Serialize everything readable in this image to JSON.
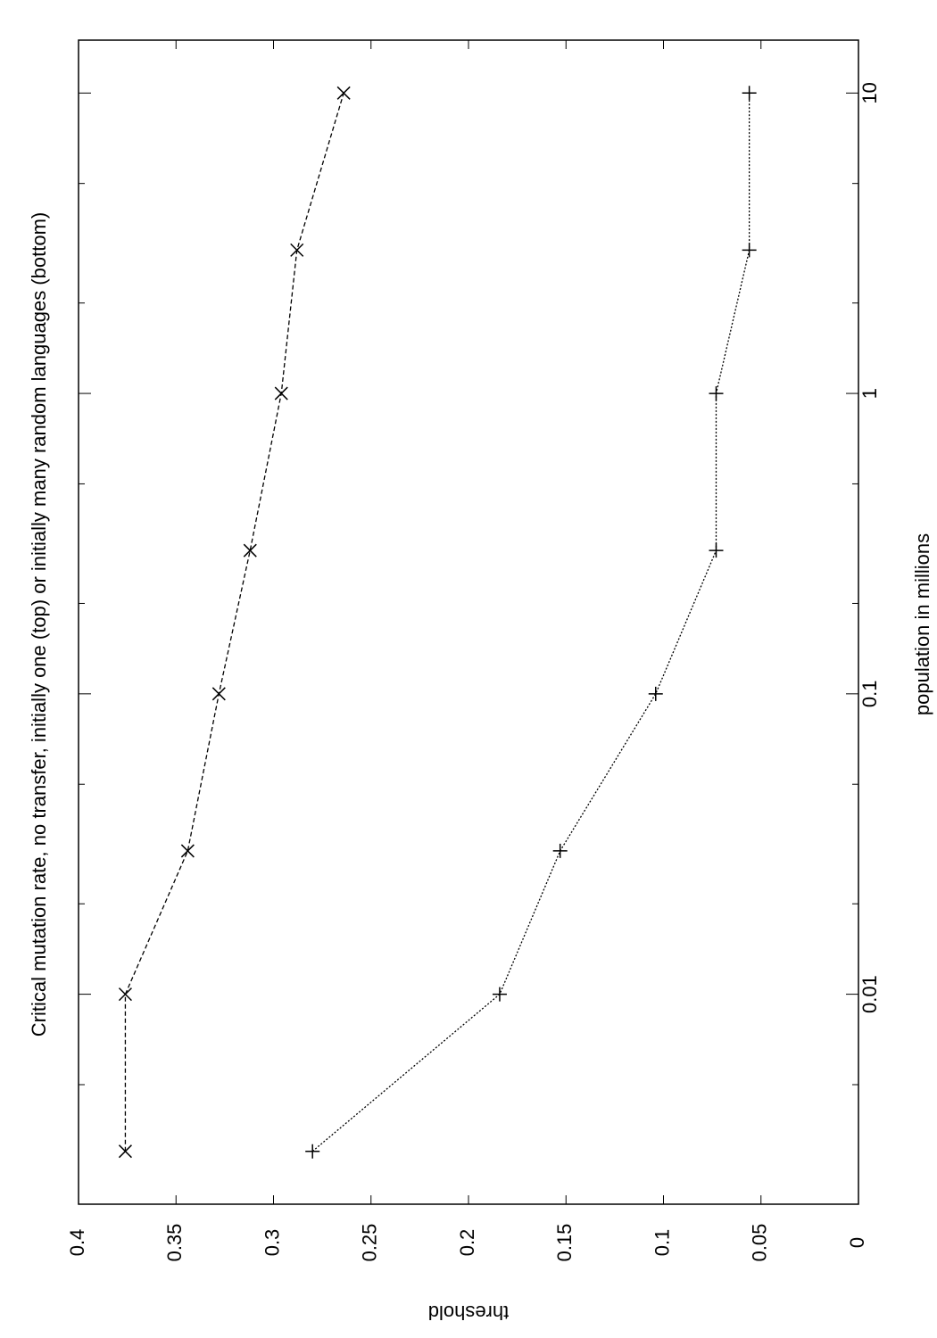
{
  "chart_data": {
    "type": "line",
    "title": "Critical mutation rate, no transfer, initially one (top) or initially many random languages (bottom)",
    "xlabel": "population in millions",
    "ylabel": "threshold",
    "x": [
      0.003,
      0.01,
      0.03,
      0.1,
      0.3,
      1,
      3,
      10
    ],
    "series": [
      {
        "color": "#000000",
        "marker": "x",
        "dash": "dashed",
        "values": [
          0.376,
          0.376,
          0.344,
          0.328,
          0.312,
          0.296,
          0.288,
          0.264
        ]
      },
      {
        "color": "#000000",
        "marker": "+",
        "dash": "dotted",
        "values": [
          0.28,
          0.184,
          0.153,
          0.104,
          0.073,
          0.073,
          0.056,
          0.056
        ]
      }
    ],
    "xscale": "log",
    "xlim": [
      0.002,
      15
    ],
    "xticks": [
      0.01,
      0.1,
      1,
      10
    ],
    "xminorticks": [
      0.005,
      0.02,
      0.05,
      0.2,
      0.5,
      2,
      5
    ],
    "ylim": [
      0,
      0.4
    ],
    "yticks": [
      0,
      0.05,
      0.1,
      0.15,
      0.2,
      0.25,
      0.3,
      0.35,
      0.4
    ],
    "rotation": -90
  }
}
